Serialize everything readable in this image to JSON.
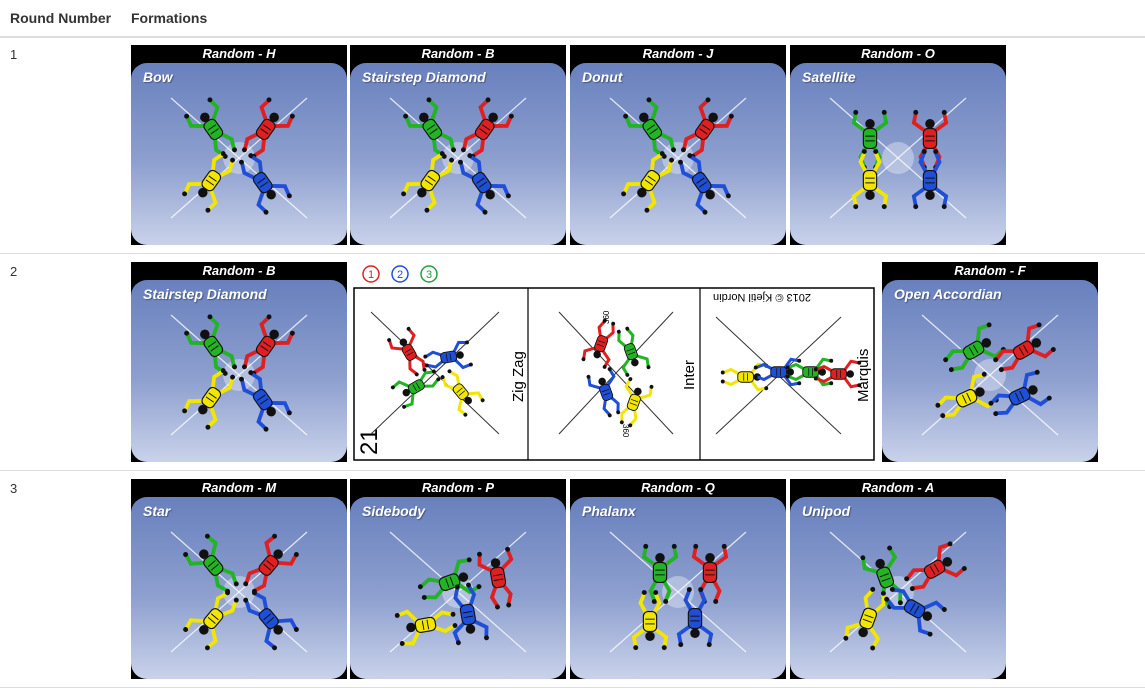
{
  "table": {
    "headers": {
      "round": "Round Number",
      "formations": "Formations"
    },
    "rows": [
      {
        "round": "1",
        "cards": [
          {
            "label": "Random - H",
            "name": "Bow"
          },
          {
            "label": "Random - B",
            "name": "Stairstep Diamond"
          },
          {
            "label": "Random - J",
            "name": "Donut"
          },
          {
            "label": "Random - O",
            "name": "Satellite"
          }
        ]
      },
      {
        "round": "2",
        "cards": [
          {
            "label": "Random - B",
            "name": "Stairstep Diamond"
          },
          {
            "label": "Random - F",
            "name": "Open Accordian"
          }
        ],
        "block_sheet": {
          "number": "21",
          "order_marks": [
            "1",
            "2",
            "3"
          ],
          "formations": [
            "Zig Zag",
            "Inter",
            "Marquis"
          ],
          "spin_marks": [
            "360",
            "360"
          ],
          "copyright": "2013 © Kjetil Nordin"
        }
      },
      {
        "round": "3",
        "cards": [
          {
            "label": "Random - M",
            "name": "Star"
          },
          {
            "label": "Random - P",
            "name": "Sidebody"
          },
          {
            "label": "Random - Q",
            "name": "Phalanx"
          },
          {
            "label": "Random - A",
            "name": "Unipod"
          }
        ]
      }
    ]
  },
  "colors": {
    "red": "#e02020",
    "green": "#22b422",
    "yellow": "#f2e600",
    "blue": "#1f4fd8"
  }
}
